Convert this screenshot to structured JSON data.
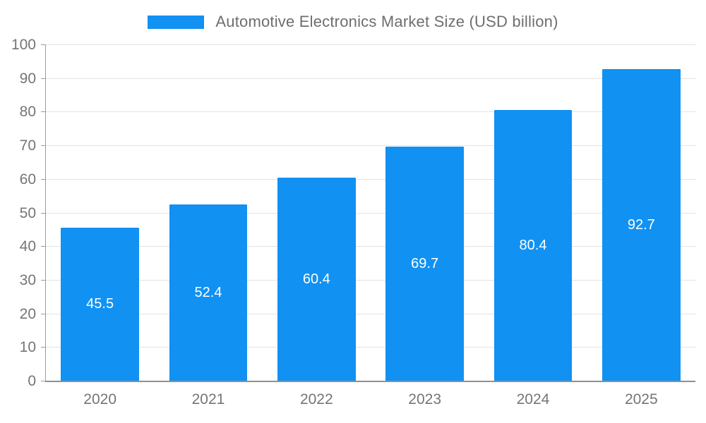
{
  "chart_data": {
    "type": "bar",
    "title": "Automotive Electronics Market Size (USD billion)",
    "categories": [
      "2020",
      "2021",
      "2022",
      "2023",
      "2024",
      "2025"
    ],
    "values": [
      45.5,
      52.4,
      60.4,
      69.7,
      80.4,
      92.7
    ],
    "series_name": "Automotive Electronics Market Size (USD billion)",
    "xlabel": "",
    "ylabel": "",
    "ylim": [
      0,
      100
    ],
    "yticks": [
      0,
      10,
      20,
      30,
      40,
      50,
      60,
      70,
      80,
      90,
      100
    ],
    "grid": true,
    "legend_position": "top-center",
    "bar_color": "#1191f2",
    "value_label_color": "#ffffff",
    "axis_text_color": "#757575",
    "gridline_color": "#e3e3e3"
  },
  "layout_note_values_shown_inside_bars": true
}
